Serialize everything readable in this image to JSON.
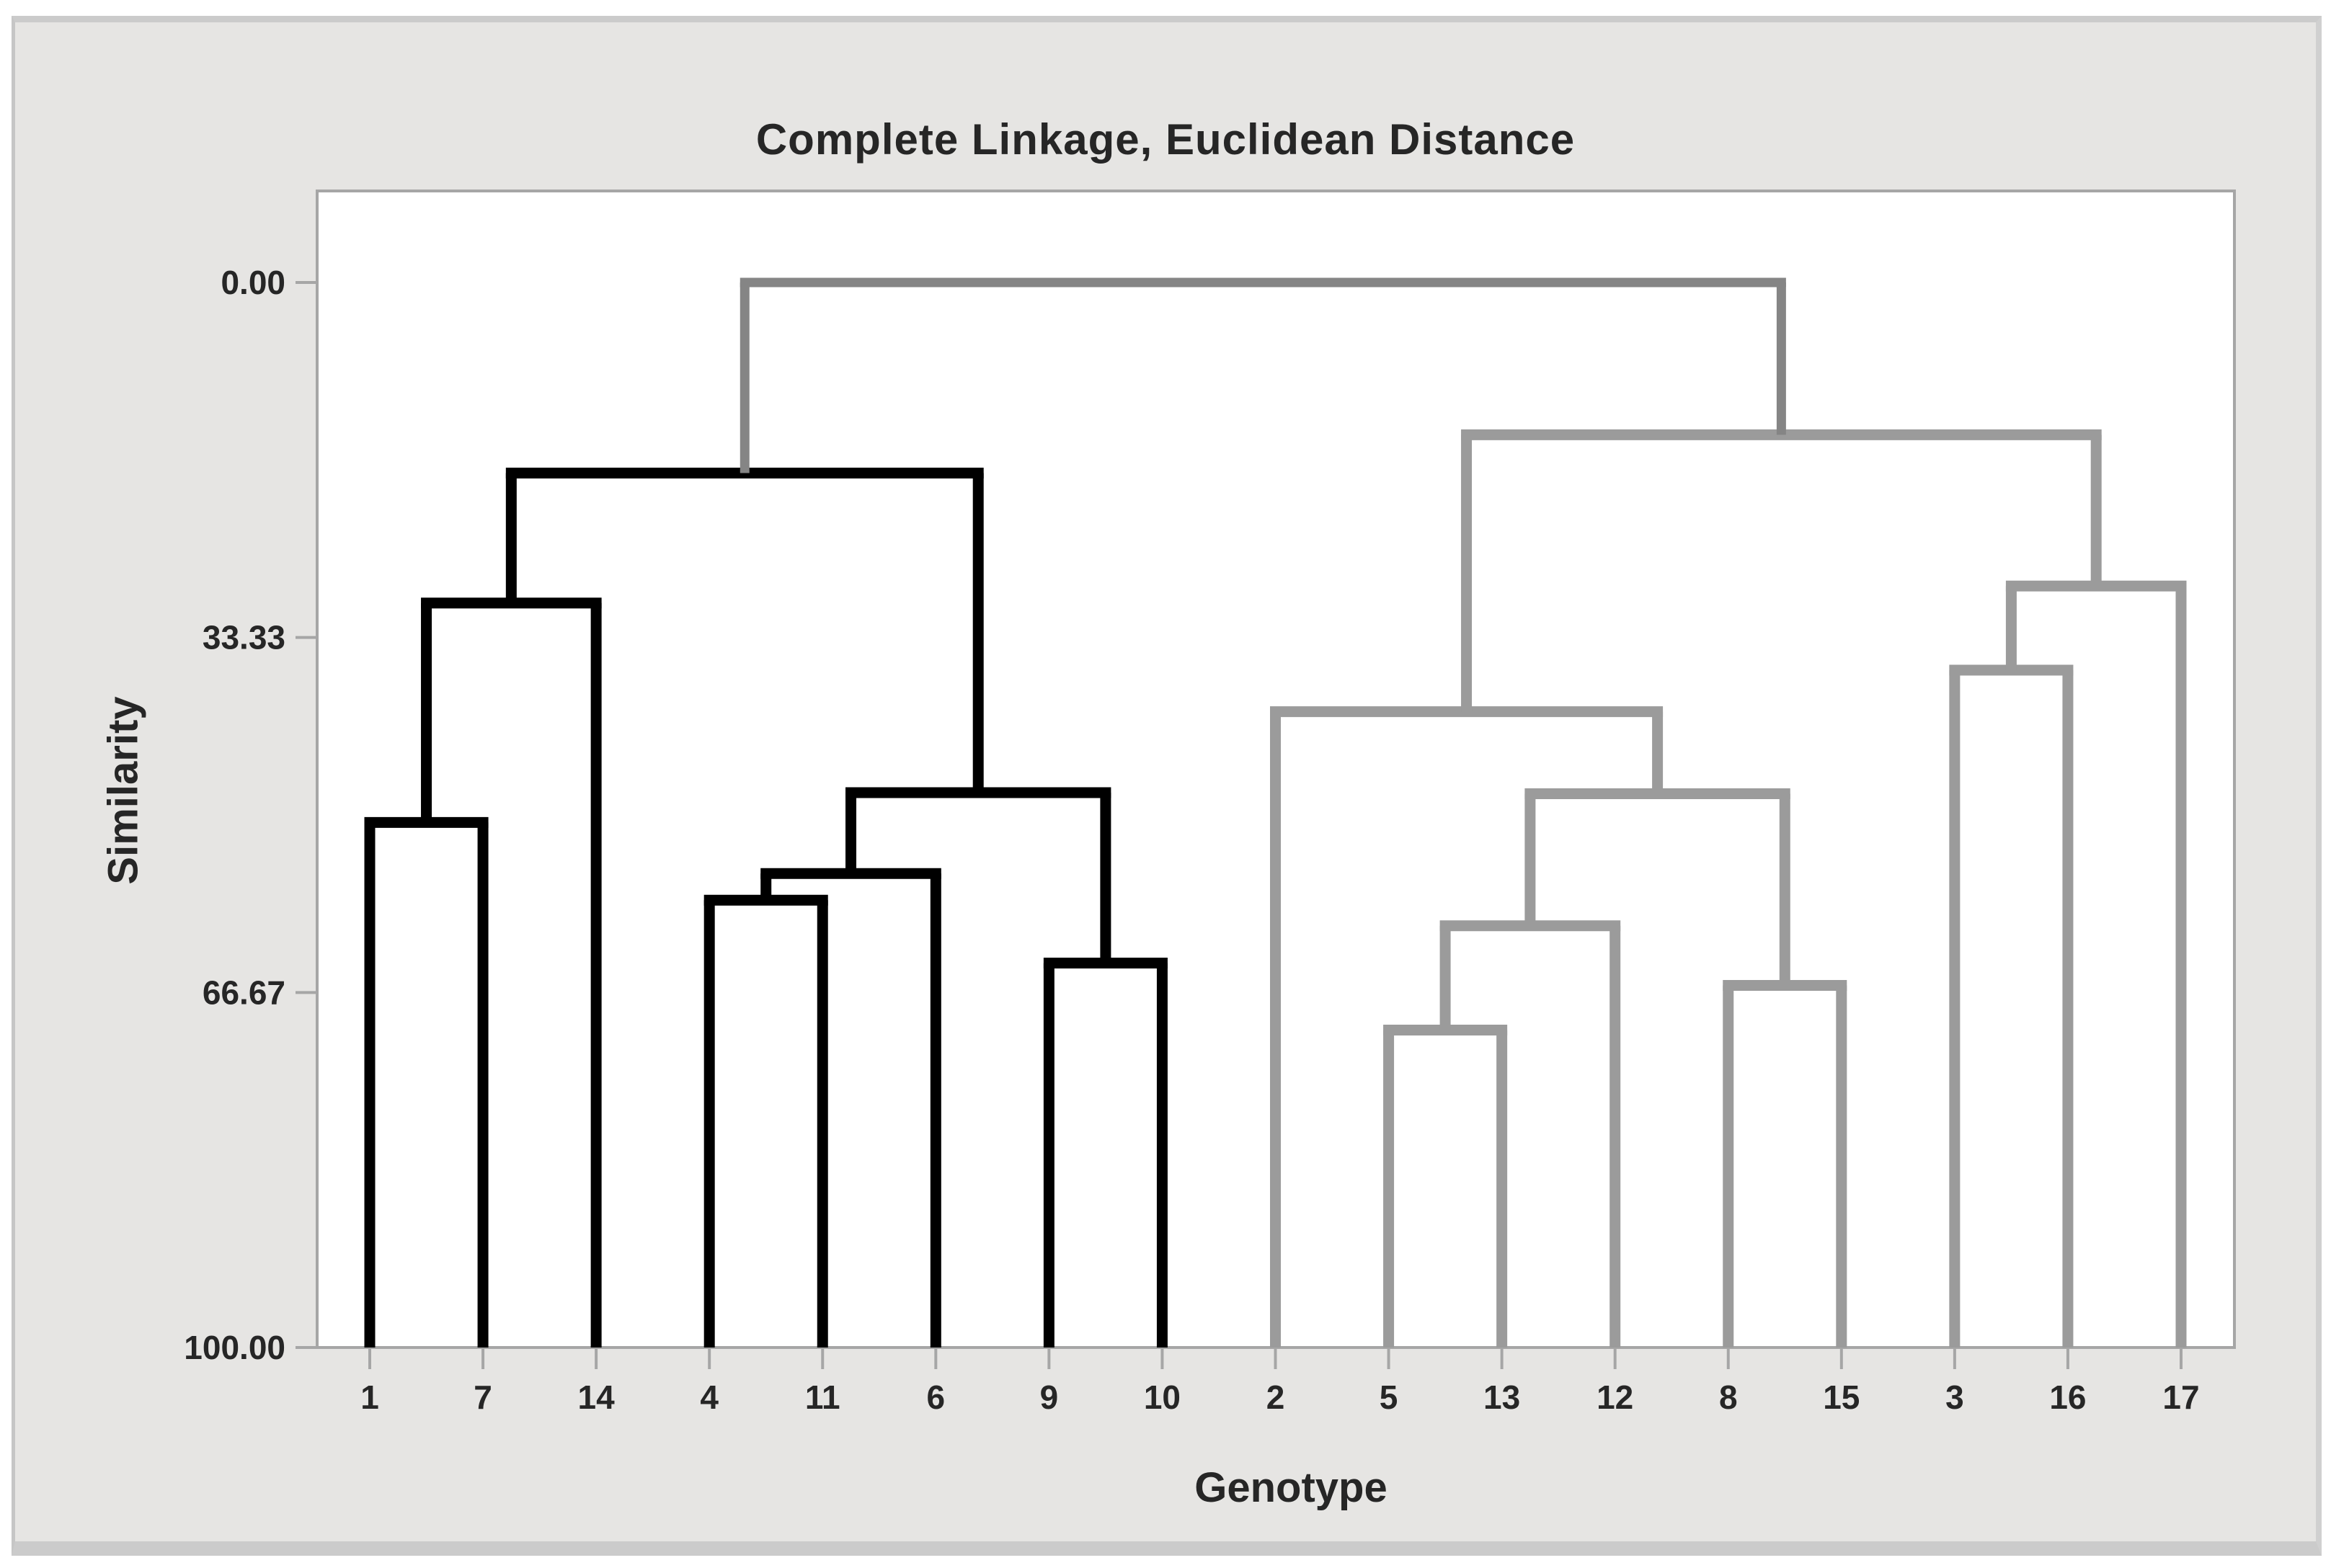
{
  "title": "Complete Linkage, Euclidean Distance",
  "y_axis": {
    "label": "Similarity",
    "ticks": [
      {
        "label": "0.00",
        "value": 0
      },
      {
        "label": "33.33",
        "value": 33.33
      },
      {
        "label": "66.67",
        "value": 66.67
      },
      {
        "label": "100.00",
        "value": 100
      }
    ]
  },
  "x_axis": {
    "label": "Genotype",
    "leaf_labels": [
      "1",
      "7",
      "14",
      "4",
      "11",
      "6",
      "9",
      "10",
      "2",
      "5",
      "13",
      "12",
      "8",
      "15",
      "3",
      "16",
      "17"
    ]
  },
  "colors": {
    "cluster1": "#000000",
    "cluster2": "#9b9b9b",
    "unclustered": "#858585",
    "frame": "#a6a6a6",
    "text": "#262626",
    "canvas": "#e6e5e3",
    "plot_background": "#ffffff",
    "window_border": "#cbcbcb"
  },
  "chart_data": {
    "type": "dendrogram",
    "title": "Complete Linkage, Euclidean Distance",
    "xlabel": "Genotype",
    "ylabel": "Similarity",
    "y_axis": {
      "min": 0,
      "max": 100,
      "inverted": true,
      "grid": false,
      "tick_values": [
        0,
        33.33,
        66.67,
        100
      ],
      "tick_labels": [
        "0.00",
        "33.33",
        "66.67",
        "100.00"
      ]
    },
    "leaf_order": [
      "1",
      "7",
      "14",
      "4",
      "11",
      "6",
      "9",
      "10",
      "2",
      "5",
      "13",
      "12",
      "8",
      "15",
      "3",
      "16",
      "17"
    ],
    "clusters": [
      {
        "index": 1,
        "color_key": "cluster1",
        "leaves": [
          "1",
          "7",
          "14",
          "4",
          "11",
          "6",
          "9",
          "10"
        ]
      },
      {
        "index": 2,
        "color_key": "cluster2",
        "leaves": [
          "2",
          "5",
          "13",
          "12",
          "8",
          "15",
          "3",
          "16",
          "17"
        ]
      }
    ],
    "merges": [
      {
        "id": "M1",
        "left": "1",
        "right": "7",
        "similarity": 50.7,
        "cluster": 1
      },
      {
        "id": "M2",
        "left": "M1",
        "right": "14",
        "similarity": 30.1,
        "cluster": 1
      },
      {
        "id": "M3",
        "left": "4",
        "right": "11",
        "similarity": 58.0,
        "cluster": 1
      },
      {
        "id": "M4",
        "left": "M3",
        "right": "6",
        "similarity": 55.5,
        "cluster": 1
      },
      {
        "id": "M5",
        "left": "9",
        "right": "10",
        "similarity": 63.9,
        "cluster": 1
      },
      {
        "id": "M6",
        "left": "M4",
        "right": "M5",
        "similarity": 47.9,
        "cluster": 1
      },
      {
        "id": "M7",
        "left": "M2",
        "right": "M6",
        "similarity": 17.9,
        "cluster": 1
      },
      {
        "id": "G1",
        "left": "5",
        "right": "13",
        "similarity": 70.2,
        "cluster": 2
      },
      {
        "id": "G2",
        "left": "G1",
        "right": "12",
        "similarity": 60.4,
        "cluster": 2
      },
      {
        "id": "G3",
        "left": "8",
        "right": "15",
        "similarity": 66.0,
        "cluster": 2
      },
      {
        "id": "G4",
        "left": "G2",
        "right": "G3",
        "similarity": 48.0,
        "cluster": 2
      },
      {
        "id": "G5",
        "left": "2",
        "right": "G4",
        "similarity": 40.3,
        "cluster": 2
      },
      {
        "id": "G6",
        "left": "3",
        "right": "16",
        "similarity": 36.4,
        "cluster": 2
      },
      {
        "id": "G7",
        "left": "G6",
        "right": "17",
        "similarity": 28.5,
        "cluster": 2
      },
      {
        "id": "G8",
        "left": "G5",
        "right": "G7",
        "similarity": 14.3,
        "cluster": 2
      },
      {
        "id": "ROOT",
        "left": "M7",
        "right": "G8",
        "similarity": 0.0,
        "cluster": 0
      }
    ]
  }
}
